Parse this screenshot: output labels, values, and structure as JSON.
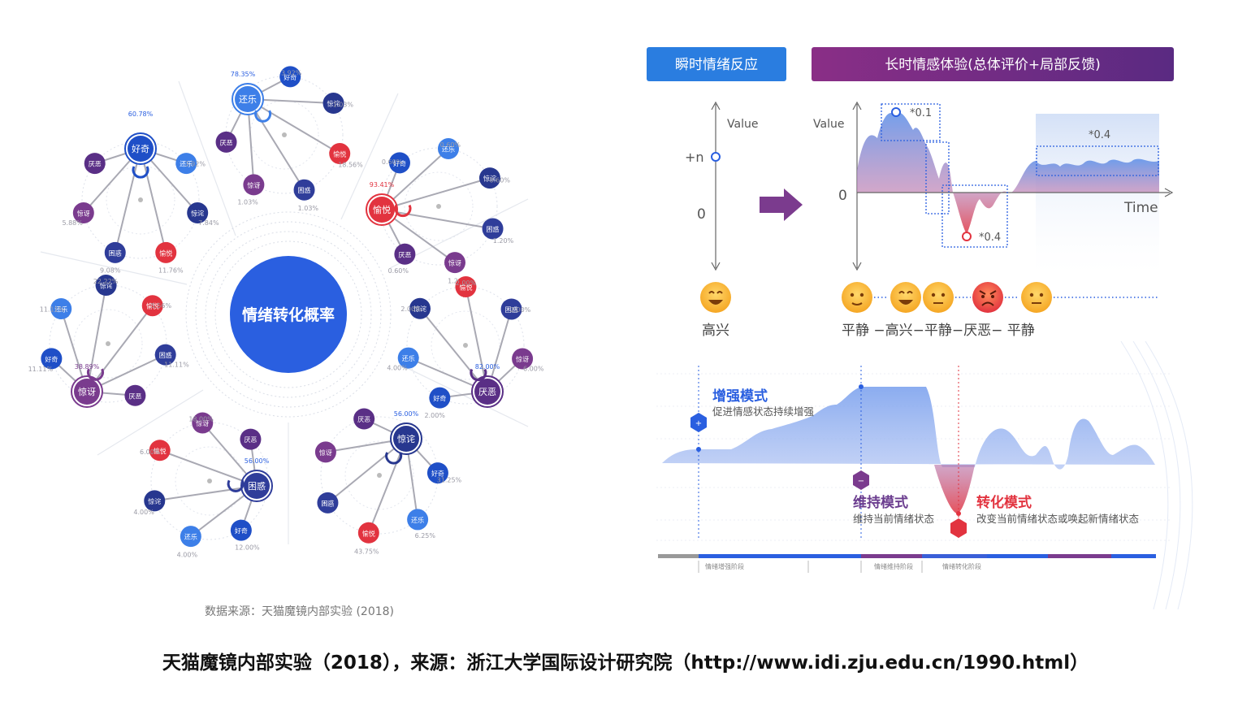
{
  "left": {
    "center_title": "情绪转化概率",
    "source": "数据来源：天猫魔镜内部实验 (2018)",
    "groups": [
      {
        "main": "好奇",
        "self_pct": "60.78%",
        "nodes": [
          "还乐",
          "惊诧",
          "愉悦",
          "困惑",
          "惊讶",
          "厌恶"
        ],
        "pcts": [
          "3.92%",
          "7.84%",
          "11.76%",
          "9.08%",
          "5.88%"
        ]
      },
      {
        "main": "还乐",
        "self_pct": "78.35%",
        "nodes": [
          "好奇",
          "惊诧",
          "愉悦",
          "困惑",
          "惊讶",
          "厌恶"
        ],
        "pcts": [
          "3.92%",
          "1.03%",
          "18.56%",
          "1.03%",
          "1.03%"
        ]
      },
      {
        "main": "愉悦",
        "self_pct": "93.41%",
        "nodes": [
          "好奇",
          "还乐",
          "惊诧",
          "困惑",
          "惊讶",
          "厌恶"
        ],
        "pcts": [
          "0.60%",
          "0.60%",
          "0.60%",
          "1.20%",
          "1.20%",
          "0.60%"
        ]
      },
      {
        "main": "厌恶",
        "self_pct": "82.00%",
        "nodes": [
          "好奇",
          "还乐",
          "惊诧",
          "愉悦",
          "困惑",
          "惊讶"
        ],
        "pcts": [
          "2.00%",
          "4.00%",
          "2.00%",
          "2.00%",
          "2.00%",
          "6.00%"
        ]
      },
      {
        "main": "惊诧",
        "self_pct": "56.00%",
        "nodes": [
          "好奇",
          "还乐",
          "愉悦",
          "困惑",
          "惊讶",
          "厌恶"
        ],
        "pcts": [
          "31.25%",
          "6.25%",
          "43.75%"
        ]
      },
      {
        "main": "困惑",
        "self_pct": "56.00%",
        "nodes": [
          "好奇",
          "还乐",
          "惊诧",
          "愉悦",
          "惊讶",
          "厌恶"
        ],
        "pcts": [
          "12.00%",
          "4.00%",
          "4.00%",
          "6.00%",
          "18.00%"
        ]
      },
      {
        "main": "惊讶",
        "self_pct": "38.89%",
        "nodes": [
          "好奇",
          "还乐",
          "惊诧",
          "愉悦",
          "困惑",
          "厌恶"
        ],
        "pcts": [
          "11.11%",
          "11.11%",
          "22.22%",
          "5.56%",
          "11.11%"
        ]
      }
    ]
  },
  "right": {
    "tab_instant": "瞬时情绪反应",
    "tab_long": "长时情感体验(总体评价+局部反馈)",
    "value_label": "Value",
    "value_label2": "Value",
    "plus_n": "+n",
    "zero_left": "0",
    "zero_right": "0",
    "time_label": "Time",
    "ann_peak": "*0.1",
    "ann_dip": "*0.4",
    "ann_tail": "*0.4",
    "emotion_left": "高兴",
    "emotion_sequence": "平静 −高兴−平静−厌恶− 平静",
    "modes": {
      "enhance_title": "增强模式",
      "enhance_desc": "促进情感状态持续增强",
      "maintain_title": "维持模式",
      "maintain_desc": "维持当前情绪状态",
      "transform_title": "转化模式",
      "transform_desc": "改变当前情绪状态或唤起新情绪状态"
    },
    "stages": [
      "情绪增强阶段",
      "情绪维持阶段",
      "情绪转化阶段"
    ]
  },
  "caption": "天猫魔镜内部实验（2018），来源：浙江大学国际设计研究院（http://www.idi.zju.edu.cn/1990.html）",
  "colors": {
    "blue_center": "#2a5fe0",
    "red": "#e2333f",
    "purple": "#6b3d8f",
    "navy": "#27378f",
    "lightblue": "#3d7fe8",
    "mid_blue": "#2f4db6"
  }
}
